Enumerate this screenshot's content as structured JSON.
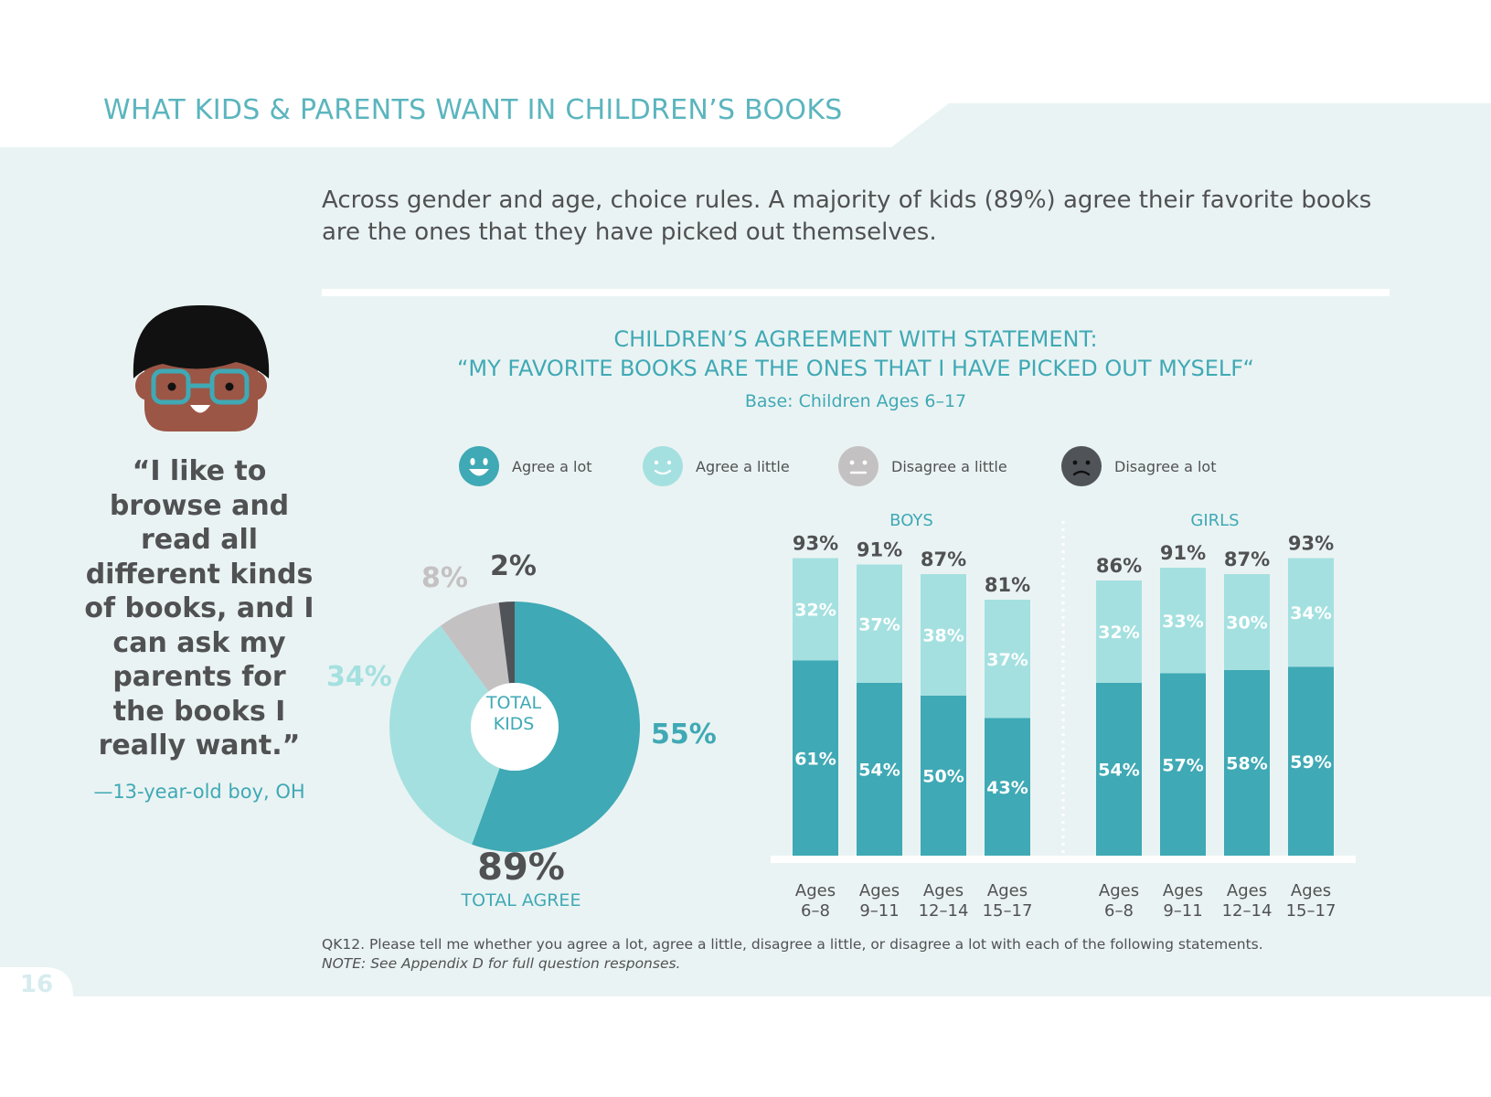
{
  "header": {
    "title": "WHAT KIDS & PARENTS WANT IN CHILDREN’S BOOKS"
  },
  "intro": "Across gender and age, choice rules. A majority of kids (89%) agree their favorite books are the ones that they have picked out themselves.",
  "quote": {
    "text": "“I like to browse and read all different kinds of books, and I can ask my parents for the books I really want.”",
    "attribution": "—13-year-old boy, OH"
  },
  "page_number": "16",
  "footnote": {
    "question": "QK12. Please tell me whether you agree a lot, agree a little, disagree a little, or disagree a lot with each of the following statements.",
    "note": "NOTE: See Appendix D for full question responses."
  },
  "colors": {
    "agree_a_lot": "#3fa9b5",
    "agree_a_little": "#a5e0e0",
    "disagree_a_little": "#c4c1c2",
    "disagree_a_lot": "#505459",
    "background": "#eaf3f3",
    "text_dark": "#505153"
  },
  "chart_data": [
    {
      "type": "pie",
      "title": "CHILDREN’S AGREEMENT WITH STATEMENT:",
      "subtitle": "“MY FAVORITE BOOKS ARE THE ONES THAT I HAVE PICKED OUT MYSELF“",
      "base": "Base: Children Ages 6–17",
      "center_label_line1": "TOTAL",
      "center_label_line2": "KIDS",
      "slices": [
        {
          "name": "Agree a lot",
          "value": 55,
          "label": "55%",
          "icon": "happy-face-icon"
        },
        {
          "name": "Agree a little",
          "value": 34,
          "label": "34%",
          "icon": "smile-face-icon"
        },
        {
          "name": "Disagree a little",
          "value": 8,
          "label": "8%",
          "icon": "neutral-face-icon"
        },
        {
          "name": "Disagree a lot",
          "value": 2,
          "label": "2%",
          "icon": "sad-face-icon"
        }
      ],
      "total_value": "89%",
      "total_label": "TOTAL AGREE"
    },
    {
      "type": "bar",
      "stacked": true,
      "groups": [
        {
          "name": "BOYS",
          "categories": [
            [
              "Ages",
              "6–8"
            ],
            [
              "Ages",
              "9–11"
            ],
            [
              "Ages",
              "12–14"
            ],
            [
              "Ages",
              "15–17"
            ]
          ],
          "series": [
            {
              "name": "Agree a lot",
              "values": [
                61,
                54,
                50,
                43
              ]
            },
            {
              "name": "Agree a little",
              "values": [
                32,
                37,
                38,
                37
              ]
            }
          ],
          "totals": [
            93,
            91,
            87,
            81
          ]
        },
        {
          "name": "GIRLS",
          "categories": [
            [
              "Ages",
              "6–8"
            ],
            [
              "Ages",
              "9–11"
            ],
            [
              "Ages",
              "12–14"
            ],
            [
              "Ages",
              "15–17"
            ]
          ],
          "series": [
            {
              "name": "Agree a lot",
              "values": [
                54,
                57,
                58,
                59
              ]
            },
            {
              "name": "Agree a little",
              "values": [
                32,
                33,
                30,
                34
              ]
            }
          ],
          "totals": [
            86,
            91,
            87,
            93
          ]
        }
      ],
      "ylim": [
        0,
        100
      ]
    }
  ]
}
